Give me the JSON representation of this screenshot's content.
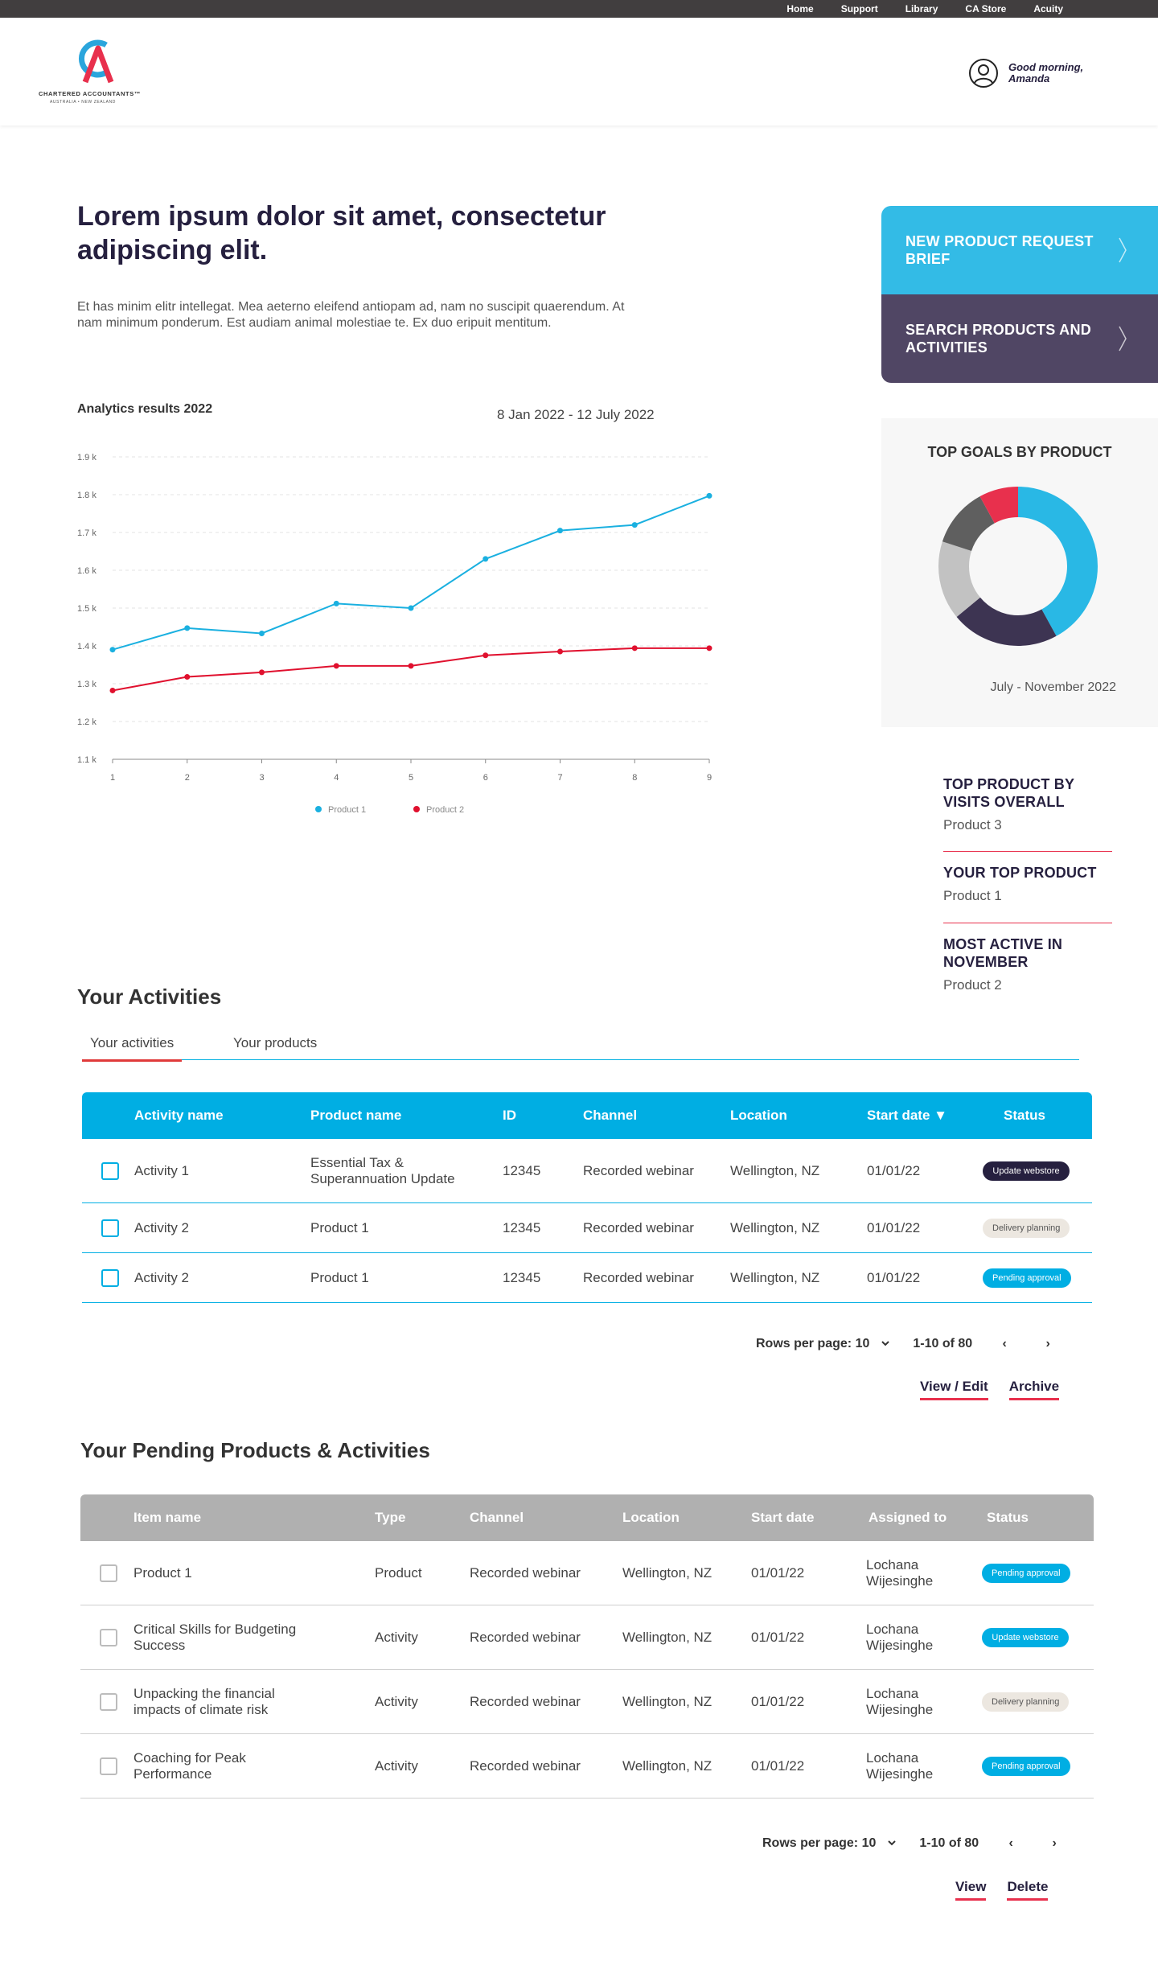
{
  "topnav": [
    "Home",
    "Support",
    "Library",
    "CA Store",
    "Acuity"
  ],
  "logo": {
    "name": "CHARTERED ACCOUNTANTS™",
    "sub": "AUSTRALIA • NEW ZEALAND"
  },
  "user": {
    "greeting": "Good morning, Amanda"
  },
  "hero": {
    "title": "Lorem ipsum dolor sit amet, consectetur adipiscing elit.",
    "body": "Et has minim elitr intellegat. Mea aeterno eleifend antiopam ad, nam no suscipit quaerendum. At nam minimum ponderum. Est audiam animal molestiae te. Ex duo eripuit mentitum."
  },
  "chart": {
    "title": "Analytics results 2022",
    "range": "8 Jan 2022 - 12 July 2022"
  },
  "chart_data": {
    "type": "line",
    "x": [
      1,
      2,
      3,
      4,
      5,
      6,
      7,
      8,
      9
    ],
    "y_ticks": [
      "1.1 k",
      "1.2 k",
      "1.3 k",
      "1.4 k",
      "1.5 k",
      "1.6 k",
      "1.7 k",
      "1.8 k",
      "1.9 k"
    ],
    "ylim": [
      1100,
      1900
    ],
    "grid": true,
    "legend": "bottom",
    "series": [
      {
        "name": "Product 1",
        "color": "#1ab0e0",
        "values": [
          1390,
          1447,
          1433,
          1512,
          1500,
          1630,
          1705,
          1720,
          1797
        ]
      },
      {
        "name": "Product 2",
        "color": "#e0102e",
        "values": [
          1282,
          1318,
          1330,
          1347,
          1347,
          1375,
          1385,
          1394,
          1394
        ]
      }
    ]
  },
  "cta": {
    "request": "NEW PRODUCT REQUEST BRIEF",
    "search": "SEARCH PRODUCTS AND ACTIVITIES"
  },
  "goals": {
    "title": "TOP GOALS BY PRODUCT",
    "date": "July - November 2022",
    "segments": [
      {
        "color": "#29b8e5",
        "value": 0.42
      },
      {
        "color": "#3d3452",
        "value": 0.22
      },
      {
        "color": "#c2c2c2",
        "value": 0.16
      },
      {
        "color": "#5f5f5f",
        "value": 0.12
      },
      {
        "color": "#e8304d",
        "value": 0.08
      }
    ]
  },
  "stats": [
    {
      "head": "TOP PRODUCT BY VISITS OVERALL",
      "value": "Product 3"
    },
    {
      "head": "YOUR TOP PRODUCT",
      "value": "Product 1"
    },
    {
      "head": "MOST ACTIVE IN NOVEMBER",
      "value": "Product 2"
    }
  ],
  "activities": {
    "title": "Your Activities",
    "tabs": [
      "Your activities",
      "Your products"
    ],
    "headers": [
      "Activity name",
      "Product  name",
      "ID",
      "Channel",
      "Location",
      "Start date ▼",
      "Status"
    ],
    "rows": [
      {
        "name": "Activity 1",
        "product": "Essential Tax & Superannuation Update",
        "id": "12345",
        "channel": "Recorded webinar",
        "location": "Wellington, NZ",
        "date": "01/01/22",
        "status": "Update webstore"
      },
      {
        "name": "Activity 2",
        "product": "Product 1",
        "id": "12345",
        "channel": "Recorded webinar",
        "location": "Wellington, NZ",
        "date": "01/01/22",
        "status": "Delivery planning"
      },
      {
        "name": "Activity 2",
        "product": "Product 1",
        "id": "12345",
        "channel": "Recorded webinar",
        "location": "Wellington, NZ",
        "date": "01/01/22",
        "status": "Pending approval"
      }
    ],
    "rows_per_page": "Rows per page: 10",
    "range": "1-10 of 80",
    "links": [
      "View / Edit",
      "Archive"
    ]
  },
  "pending": {
    "title": "Your Pending Products & Activities",
    "headers": [
      "Item name",
      "Type",
      "Channel",
      "Location",
      "Start date",
      "Assigned to",
      "Status"
    ],
    "rows": [
      {
        "name": "Product 1",
        "type": "Product",
        "channel": "Recorded webinar",
        "location": "Wellington, NZ",
        "date": "01/01/22",
        "assigned": "Lochana Wijesinghe",
        "status": "Pending approval"
      },
      {
        "name": "Critical Skills for Budgeting Success",
        "type": "Activity",
        "channel": "Recorded webinar",
        "location": "Wellington, NZ",
        "date": "01/01/22",
        "assigned": "Lochana Wijesinghe",
        "status": "Update webstore"
      },
      {
        "name": "Unpacking the financial impacts of climate risk",
        "type": "Activity",
        "channel": "Recorded webinar",
        "location": "Wellington, NZ",
        "date": "01/01/22",
        "assigned": "Lochana Wijesinghe",
        "status": "Delivery planning"
      },
      {
        "name": "Coaching for Peak Performance",
        "type": "Activity",
        "channel": "Recorded webinar",
        "location": "Wellington, NZ",
        "date": "01/01/22",
        "assigned": "Lochana Wijesinghe",
        "status": "Pending approval"
      }
    ],
    "rows_per_page": "Rows per page: 10",
    "range": "1-10 of 80",
    "links": [
      "View",
      "Delete"
    ]
  }
}
